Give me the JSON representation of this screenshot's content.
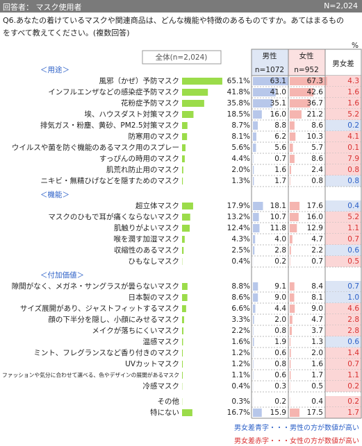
{
  "header": {
    "respondents": "回答者： マスク使用者",
    "n": "N=2,024"
  },
  "question": "Q6.あなたの着けているマスクや関連商品は、どんな機能や特徴のあるものですか。あてはまるものをすべて教えてください。(複数回答)",
  "unit": "%",
  "columns": {
    "total": "全体(n=2,024)",
    "male": "男性",
    "male_n": "n=1072",
    "female": "女性",
    "female_n": "n=952",
    "diff": "男女差"
  },
  "sections": [
    {
      "label": "＜用途＞",
      "rows": [
        {
          "label": "風邪（かぜ）予防マスク",
          "values": [
            65.1,
            63.1,
            67.3,
            4.3
          ],
          "value_labels": [
            "65.1%",
            "63.1",
            "67.3",
            "4.3"
          ]
        },
        {
          "label": "インフルエンザなどの感染症予防マスク",
          "values": [
            41.8,
            41.0,
            42.6,
            1.6
          ],
          "value_labels": [
            "41.8%",
            "41.0",
            "42.6",
            "1.6"
          ]
        },
        {
          "label": "花粉症予防マスク",
          "values": [
            35.8,
            35.1,
            36.7,
            1.6
          ],
          "value_labels": [
            "35.8%",
            "35.1",
            "36.7",
            "1.6"
          ]
        },
        {
          "label": "埃、ハウスダスト対策マスク",
          "values": [
            18.5,
            16.0,
            21.2,
            5.2
          ],
          "value_labels": [
            "18.5%",
            "16.0",
            "21.2",
            "5.2"
          ]
        },
        {
          "label": "排気ガス・粉塵、黄砂、PM2.5対策マスク",
          "values": [
            8.7,
            8.8,
            8.6,
            0.2
          ],
          "value_labels": [
            "8.7%",
            "8.8",
            "8.6",
            "0.2"
          ]
        },
        {
          "label": "防寒用のマスク",
          "values": [
            8.1,
            6.2,
            10.3,
            4.1
          ],
          "value_labels": [
            "8.1%",
            "6.2",
            "10.3",
            "4.1"
          ]
        },
        {
          "label": "ウイルスや菌を防ぐ機能のあるマスク用のスプレー",
          "values": [
            5.6,
            5.6,
            5.7,
            0.1
          ],
          "value_labels": [
            "5.6%",
            "5.6",
            "5.7",
            "0.1"
          ]
        },
        {
          "label": "すっぴんの時用のマスク",
          "values": [
            4.4,
            0.7,
            8.6,
            7.9
          ],
          "value_labels": [
            "4.4%",
            "0.7",
            "8.6",
            "7.9"
          ]
        },
        {
          "label": "肌荒れ防止用のマスク",
          "values": [
            2.0,
            1.6,
            2.4,
            0.8
          ],
          "value_labels": [
            "2.0%",
            "1.6",
            "2.4",
            "0.8"
          ]
        },
        {
          "label": "ニキビ・無精ひげなどを隠すためのマスク",
          "values": [
            1.3,
            1.7,
            0.8,
            0.8
          ],
          "value_labels": [
            "1.3%",
            "1.7",
            "0.8",
            "0.8"
          ]
        }
      ]
    },
    {
      "label": "＜機能＞",
      "rows": [
        {
          "label": "超立体マスク",
          "values": [
            17.9,
            18.1,
            17.6,
            0.4
          ],
          "value_labels": [
            "17.9%",
            "18.1",
            "17.6",
            "0.4"
          ]
        },
        {
          "label": "マスクのひもで耳が痛くならないマスク",
          "values": [
            13.2,
            10.7,
            16.0,
            5.2
          ],
          "value_labels": [
            "13.2%",
            "10.7",
            "16.0",
            "5.2"
          ]
        },
        {
          "label": "肌触りがよいマスク",
          "values": [
            12.4,
            11.8,
            12.9,
            1.1
          ],
          "value_labels": [
            "12.4%",
            "11.8",
            "12.9",
            "1.1"
          ]
        },
        {
          "label": "喉を潤す加湿マスク",
          "values": [
            4.3,
            4.0,
            4.7,
            0.7
          ],
          "value_labels": [
            "4.3%",
            "4.0",
            "4.7",
            "0.7"
          ]
        },
        {
          "label": "収縮性のあるマスク",
          "values": [
            2.5,
            2.8,
            2.2,
            0.6
          ],
          "value_labels": [
            "2.5%",
            "2.8",
            "2.2",
            "0.6"
          ]
        },
        {
          "label": "ひもなしマスク",
          "values": [
            0.4,
            0.2,
            0.7,
            0.5
          ],
          "value_labels": [
            "0.4%",
            "0.2",
            "0.7",
            "0.5"
          ]
        }
      ]
    },
    {
      "label": "＜付加価値＞",
      "rows": [
        {
          "label": "隙間がなく、メガネ・サングラスが曇らないマスク",
          "values": [
            8.8,
            9.1,
            8.4,
            0.7
          ],
          "value_labels": [
            "8.8%",
            "9.1",
            "8.4",
            "0.7"
          ]
        },
        {
          "label": "日本製のマスク",
          "values": [
            8.6,
            9.0,
            8.1,
            1.0
          ],
          "value_labels": [
            "8.6%",
            "9.0",
            "8.1",
            "1.0"
          ]
        },
        {
          "label": "サイズ展開があり、ジャストフィットするマスク",
          "values": [
            6.6,
            4.4,
            9.0,
            4.6
          ],
          "value_labels": [
            "6.6%",
            "4.4",
            "9.0",
            "4.6"
          ]
        },
        {
          "label": "顔の下半分を隠し、小顔にみせるマスク",
          "values": [
            3.3,
            2.0,
            4.7,
            2.8
          ],
          "value_labels": [
            "3.3%",
            "2.0",
            "4.7",
            "2.8"
          ]
        },
        {
          "label": "メイクが落ちにくいマスク",
          "values": [
            2.2,
            0.8,
            3.7,
            2.8
          ],
          "value_labels": [
            "2.2%",
            "0.8",
            "3.7",
            "2.8"
          ]
        },
        {
          "label": "温感マスク",
          "values": [
            1.6,
            1.9,
            1.3,
            0.6
          ],
          "value_labels": [
            "1.6%",
            "1.9",
            "1.3",
            "0.6"
          ]
        },
        {
          "label": "ミント、フレグランスなど香り付きのマスク",
          "values": [
            1.2,
            0.6,
            2.0,
            1.4
          ],
          "value_labels": [
            "1.2%",
            "0.6",
            "2.0",
            "1.4"
          ]
        },
        {
          "label": "UVカットマスク",
          "values": [
            1.2,
            0.8,
            1.6,
            0.7
          ],
          "value_labels": [
            "1.2%",
            "0.8",
            "1.6",
            "0.7"
          ]
        },
        {
          "label": "ファッションや気分に合わせて選べる、色やデザインの展開があるマスク",
          "values": [
            1.1,
            0.6,
            1.7,
            1.1
          ],
          "value_labels": [
            "1.1%",
            "0.6",
            "1.7",
            "1.1"
          ]
        },
        {
          "label": "冷感マスク",
          "values": [
            0.4,
            0.3,
            0.5,
            0.2
          ],
          "value_labels": [
            "0.4%",
            "0.3",
            "0.5",
            "0.2"
          ]
        }
      ]
    },
    {
      "rows": [
        {
          "label": "その他",
          "values": [
            0.3,
            0.2,
            0.4,
            0.2
          ],
          "value_labels": [
            "0.3%",
            "0.2",
            "0.4",
            "0.2"
          ]
        },
        {
          "label": "特にない",
          "values": [
            16.7,
            15.9,
            17.5,
            1.7
          ],
          "value_labels": [
            "16.7%",
            "15.9",
            "17.5",
            "1.7"
          ]
        }
      ]
    }
  ],
  "legend": {
    "blue": "男女差青字・・・男性の方が数値が高い",
    "red": "男女差赤字・・・女性の方が数値が高い"
  }
}
